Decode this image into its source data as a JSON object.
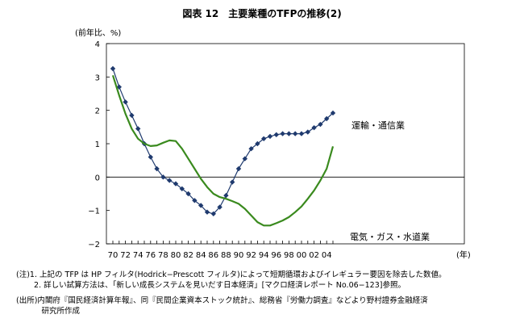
{
  "title": "図表 12　主要業種のTFPの推移(2)",
  "chart_data": {
    "type": "line",
    "title": "図表 12　主要業種のTFPの推移(2)",
    "ylabel": "(前年比、%)",
    "xlabel": "(年)",
    "ylim": [
      -2,
      4
    ],
    "yticks": [
      "4",
      "3",
      "2",
      "1",
      "0",
      "−1",
      "−2"
    ],
    "ytick_values": [
      4,
      3,
      2,
      1,
      0,
      -1,
      -2
    ],
    "xticks": [
      "70",
      "72",
      "74",
      "76",
      "78",
      "80",
      "82",
      "84",
      "86",
      "88",
      "90",
      "92",
      "94",
      "96",
      "98",
      "00",
      "02",
      "04"
    ],
    "x": [
      1970,
      1971,
      1972,
      1973,
      1974,
      1975,
      1976,
      1977,
      1978,
      1979,
      1980,
      1981,
      1982,
      1983,
      1984,
      1985,
      1986,
      1987,
      1988,
      1989,
      1990,
      1991,
      1992,
      1993,
      1994,
      1995,
      1996,
      1997,
      1998,
      1999,
      2000,
      2001,
      2002,
      2003,
      2004,
      2005
    ],
    "series": [
      {
        "name": "運輸・通信業",
        "color": "#1f3a6e",
        "marker": "diamond",
        "values": [
          3.25,
          2.7,
          2.25,
          1.85,
          1.45,
          1.0,
          0.6,
          0.25,
          0.0,
          -0.1,
          -0.2,
          -0.35,
          -0.5,
          -0.7,
          -0.85,
          -1.05,
          -1.1,
          -0.9,
          -0.55,
          -0.15,
          0.25,
          0.55,
          0.85,
          1.0,
          1.15,
          1.22,
          1.27,
          1.3,
          1.3,
          1.3,
          1.3,
          1.35,
          1.48,
          1.58,
          1.75,
          1.92
        ]
      },
      {
        "name": "電気・ガス・水道業",
        "color": "#3a8a1e",
        "marker": "none",
        "values": [
          3.05,
          2.45,
          1.9,
          1.45,
          1.15,
          1.0,
          0.93,
          0.95,
          1.03,
          1.1,
          1.08,
          0.85,
          0.55,
          0.25,
          -0.05,
          -0.3,
          -0.5,
          -0.6,
          -0.65,
          -0.72,
          -0.8,
          -0.95,
          -1.15,
          -1.35,
          -1.45,
          -1.45,
          -1.38,
          -1.3,
          -1.2,
          -1.05,
          -0.88,
          -0.65,
          -0.4,
          -0.1,
          0.25,
          0.92
        ]
      }
    ]
  },
  "notes": [
    "(注)1. 上記の TFP は HP フィルタ(Hodrick−Prescott フィルタ)によって短期循環およびイレギュラー要因を除去した数値。",
    "　　 2. 詳しい試算方法は、「新しい成長システムを見いだす日本経済」[マクロ経済レポート No.06−123]参照。",
    "(出所)内閣府『国民経済計算年報』、同『民間企業資本ストック統計』、総務省『労働力調査』などより野村證券金融経済",
    "　　　 研究所作成"
  ]
}
